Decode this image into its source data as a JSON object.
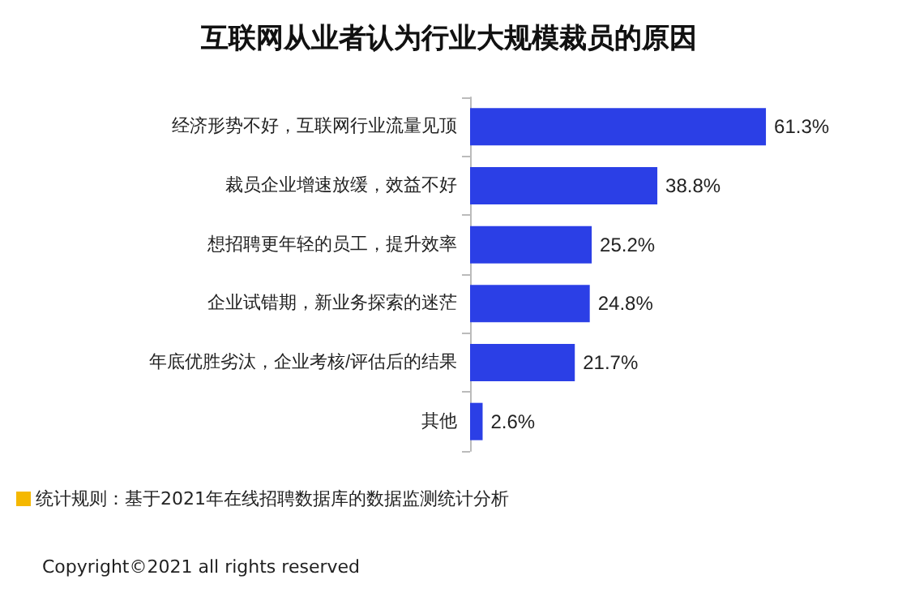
{
  "chart_data": {
    "type": "bar",
    "orientation": "horizontal",
    "title": "互联网从业者认为行业大规模裁员的原因",
    "categories": [
      "经济形势不好，互联网行业流量见顶",
      "裁员企业增速放缓，效益不好",
      "想招聘更年轻的员工，提升效率",
      "企业试错期，新业务探索的迷茫",
      "年底优胜劣汰，企业考核/评估后的结果",
      "其他"
    ],
    "values": [
      61.3,
      38.8,
      25.2,
      24.8,
      21.7,
      2.6
    ],
    "value_labels": [
      "61.3%",
      "38.8%",
      "25.2%",
      "24.8%",
      "21.7%",
      "2.6%"
    ],
    "color": "#2b3fe6",
    "annotations": [
      "统计规则：基于2021年在线招聘数据库的数据监测统计分析",
      "Copyright©2021 all rights reserved"
    ]
  }
}
